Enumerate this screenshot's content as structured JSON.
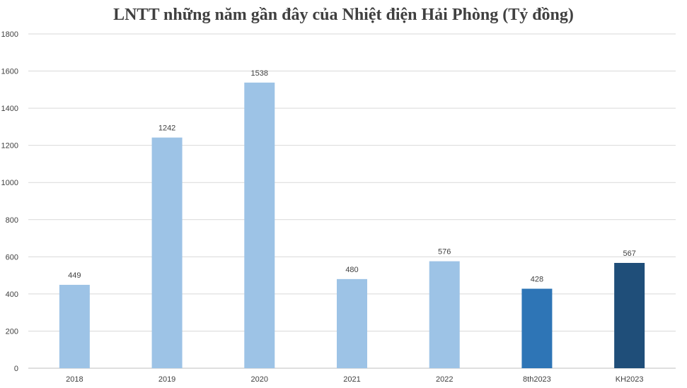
{
  "chart_data": {
    "type": "bar",
    "title": "LNTT những năm gần đây của Nhiệt điện Hải Phòng (Tỷ đồng)",
    "categories": [
      "2018",
      "2019",
      "2020",
      "2021",
      "2022",
      "8th2023",
      "KH2023"
    ],
    "values": [
      449,
      1242,
      1538,
      480,
      576,
      428,
      567
    ],
    "bar_colors": [
      "#9dc3e6",
      "#9dc3e6",
      "#9dc3e6",
      "#9dc3e6",
      "#9dc3e6",
      "#2e75b6",
      "#1f4e79"
    ],
    "ylim": [
      0,
      1800
    ],
    "yticks": [
      "0",
      "200",
      "400",
      "600",
      "800",
      "1000",
      "1200",
      "1400",
      "1600",
      "1800"
    ],
    "xlabel": "",
    "ylabel": "",
    "grid": true,
    "legend": "none"
  }
}
